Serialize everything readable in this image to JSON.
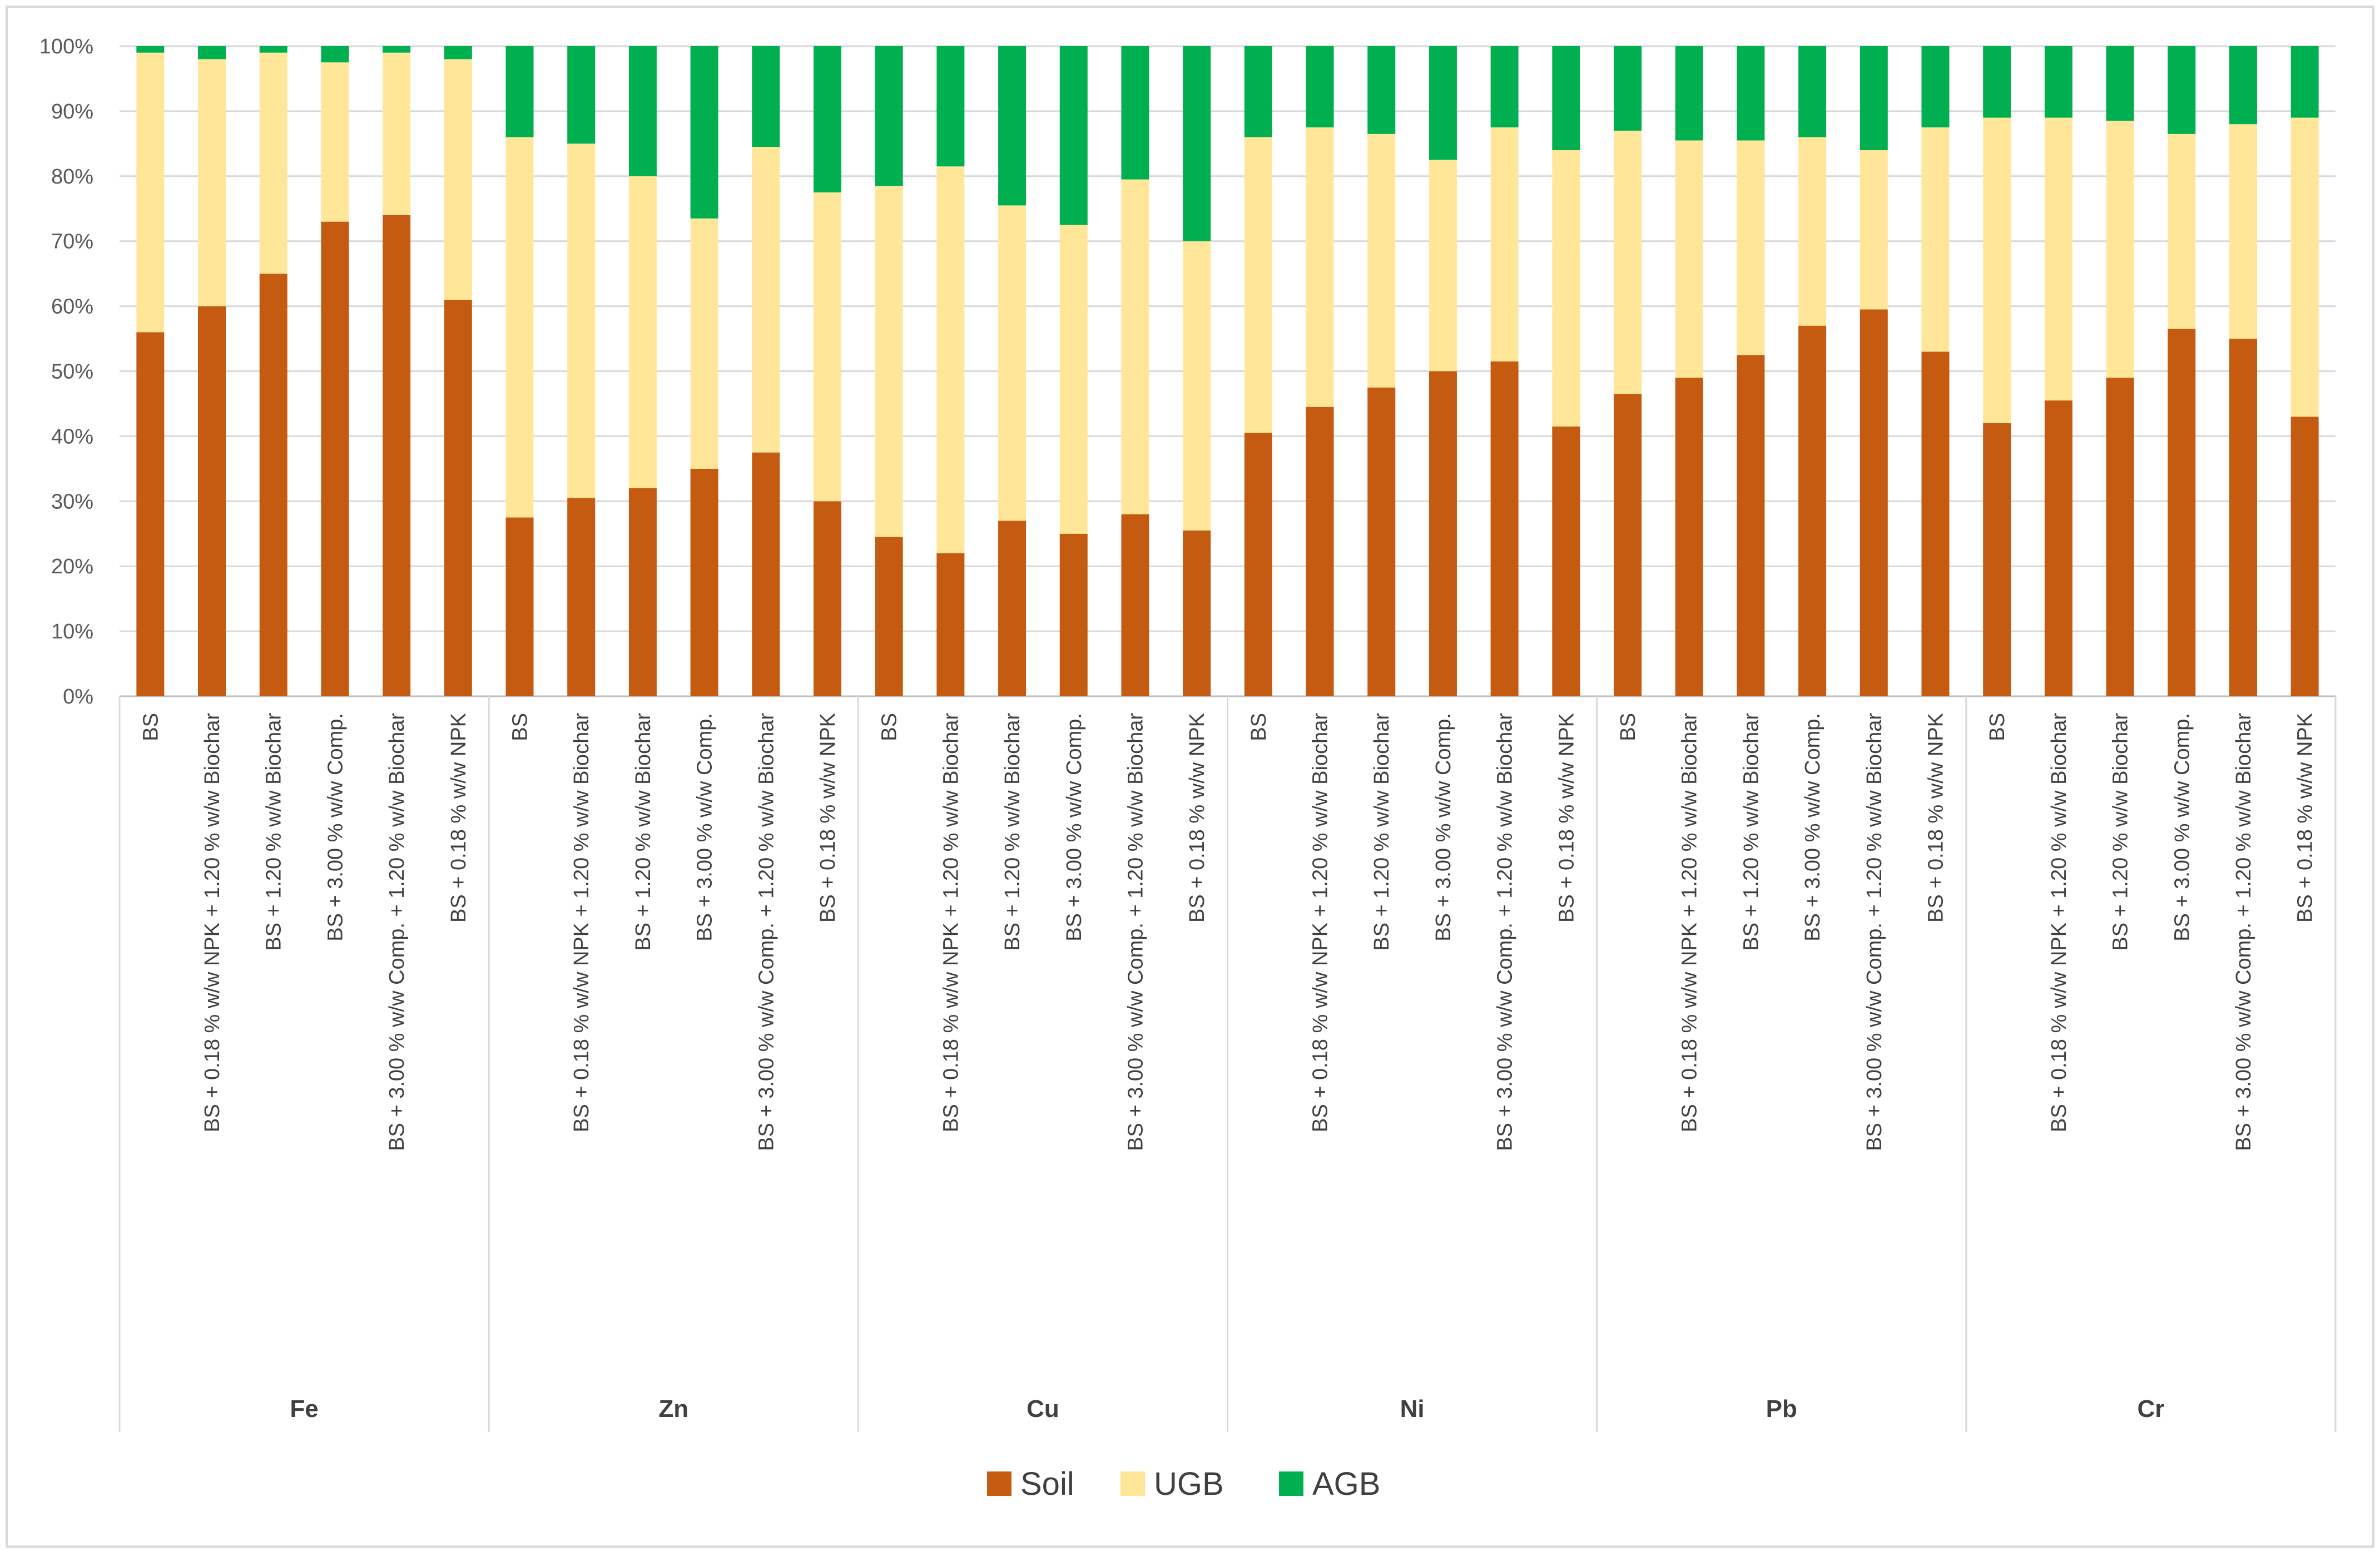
{
  "chart_data": {
    "type": "bar",
    "stacked": "percent",
    "yticks": [
      "0%",
      "10%",
      "20%",
      "30%",
      "40%",
      "50%",
      "60%",
      "70%",
      "80%",
      "90%",
      "100%"
    ],
    "ylim": [
      0,
      100
    ],
    "legend": [
      {
        "name": "Soil",
        "color": "#C55A11"
      },
      {
        "name": "UGB",
        "color": "#FFE699"
      },
      {
        "name": "AGB",
        "color": "#00B050"
      }
    ],
    "legend_position": "bottom",
    "treatments": [
      "BS",
      "BS + 0.18 % w/w NPK + 1.20 % w/w Biochar",
      "BS + 1.20 % w/w Biochar",
      "BS + 3.00 % w/w Comp.",
      "BS + 3.00 % w/w Comp. + 1.20 % w/w Biochar",
      "BS + 0.18 % w/w NPK"
    ],
    "groups": [
      {
        "name": "Fe",
        "soil": [
          56,
          60,
          65,
          73,
          74,
          61
        ],
        "ugb": [
          43,
          38,
          34,
          24.5,
          25,
          37
        ],
        "agb": [
          1,
          2,
          1,
          2.5,
          1,
          2
        ]
      },
      {
        "name": "Zn",
        "soil": [
          27.5,
          30.5,
          32,
          35,
          37.5,
          30
        ],
        "ugb": [
          58.5,
          54.5,
          48,
          38.5,
          47,
          47.5
        ],
        "agb": [
          14,
          15,
          20,
          26.5,
          15.5,
          22.5
        ]
      },
      {
        "name": "Cu",
        "soil": [
          24.5,
          22,
          27,
          25,
          28,
          25.5
        ],
        "ugb": [
          54,
          59.5,
          48.5,
          47.5,
          51.5,
          44.5
        ],
        "agb": [
          21.5,
          18.5,
          24.5,
          27.5,
          20.5,
          30
        ]
      },
      {
        "name": "Ni",
        "soil": [
          40.5,
          44.5,
          47.5,
          50,
          51.5,
          41.5
        ],
        "ugb": [
          45.5,
          43,
          39,
          32.5,
          36,
          42.5
        ],
        "agb": [
          14,
          12.5,
          13.5,
          17.5,
          12.5,
          16
        ]
      },
      {
        "name": "Pb",
        "soil": [
          46.5,
          49,
          52.5,
          57,
          59.5,
          53
        ],
        "ugb": [
          40.5,
          36.5,
          33,
          29,
          24.5,
          34.5
        ],
        "agb": [
          13,
          14.5,
          14.5,
          14,
          16,
          12.5
        ]
      },
      {
        "name": "Cr",
        "soil": [
          42,
          45.5,
          49,
          56.5,
          55,
          43
        ],
        "ugb": [
          47,
          43.5,
          39.5,
          30,
          33,
          46
        ],
        "agb": [
          11,
          11,
          11.5,
          13.5,
          12,
          11
        ]
      }
    ]
  }
}
